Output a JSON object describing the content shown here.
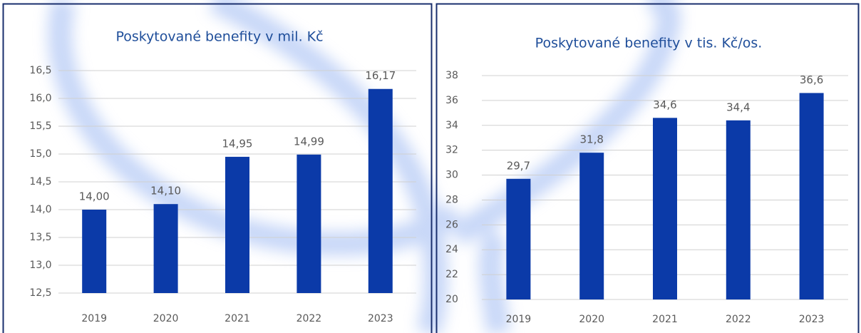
{
  "chart_data": [
    {
      "type": "bar",
      "title": "Poskytované benefity v mil. Kč",
      "categories": [
        "2019",
        "2020",
        "2021",
        "2022",
        "2023"
      ],
      "values": [
        14.0,
        14.1,
        14.95,
        14.99,
        16.17
      ],
      "value_labels": [
        "14,00",
        "14,10",
        "14,95",
        "14,99",
        "16,17"
      ],
      "color": "#0b3aa8",
      "ylim": [
        12.5,
        16.5
      ],
      "yticks": [
        {
          "value": 12.5,
          "label": "12,5"
        },
        {
          "value": 13.0,
          "label": "13,0"
        },
        {
          "value": 13.5,
          "label": "13,5"
        },
        {
          "value": 14.0,
          "label": "14,0"
        },
        {
          "value": 14.5,
          "label": "14,5"
        },
        {
          "value": 15.0,
          "label": "15,0"
        },
        {
          "value": 15.5,
          "label": "15,5"
        },
        {
          "value": 16.0,
          "label": "16,0"
        },
        {
          "value": 16.5,
          "label": "16,5"
        }
      ],
      "grid": true
    },
    {
      "type": "bar",
      "title": "Poskytované benefity v tis. Kč/os.",
      "categories": [
        "2019",
        "2020",
        "2021",
        "2022",
        "2023"
      ],
      "values": [
        29.7,
        31.8,
        34.6,
        34.4,
        36.6
      ],
      "value_labels": [
        "29,7",
        "31,8",
        "34,6",
        "34,4",
        "36,6"
      ],
      "color": "#0b3aa8",
      "ylim": [
        20,
        38
      ],
      "yticks": [
        20,
        22,
        24,
        26,
        28,
        30,
        32,
        34,
        36,
        38
      ],
      "grid": true
    }
  ]
}
